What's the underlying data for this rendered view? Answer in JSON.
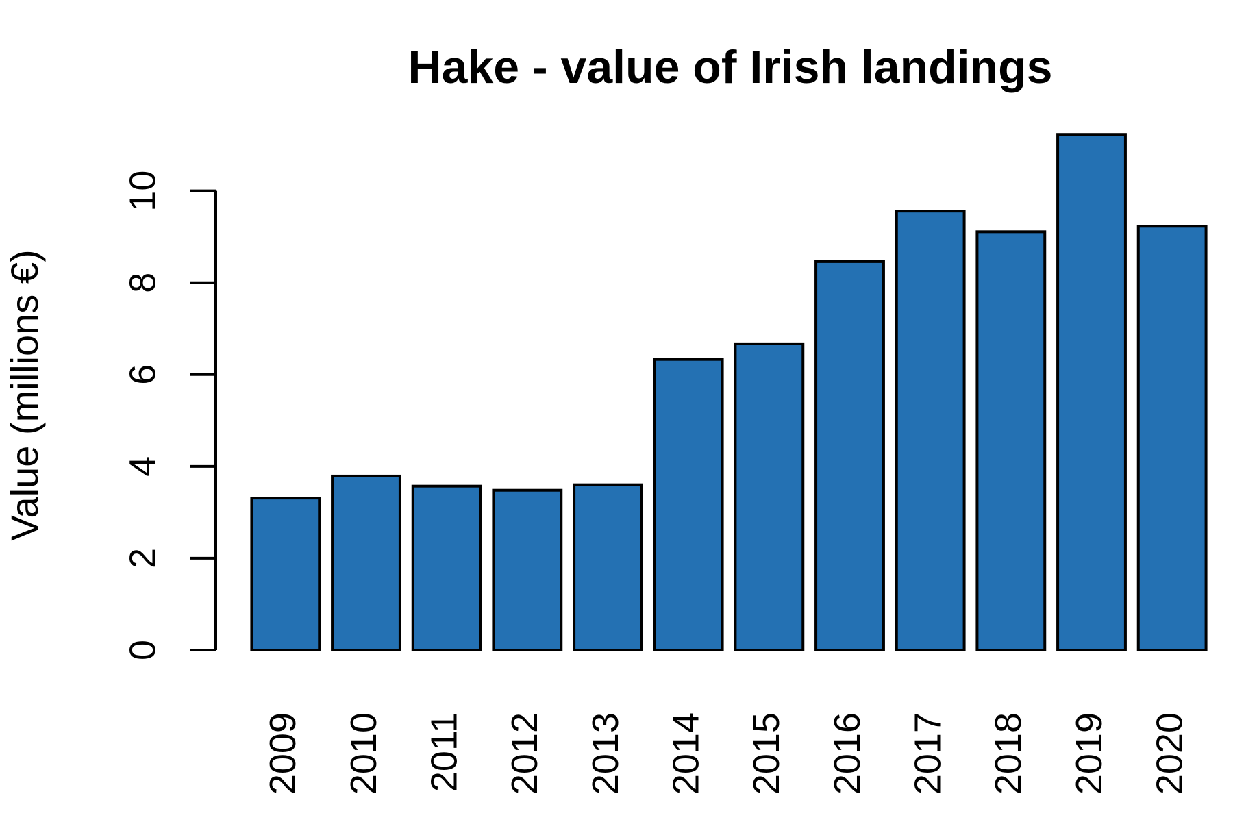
{
  "chart_data": {
    "type": "bar",
    "title": "Hake - value of Irish landings",
    "y_label": "Value (millions €)",
    "categories": [
      "2009",
      "2010",
      "2011",
      "2012",
      "2013",
      "2014",
      "2015",
      "2016",
      "2017",
      "2018",
      "2019",
      "2020"
    ],
    "values": [
      3.31,
      3.79,
      3.57,
      3.48,
      3.6,
      6.33,
      6.67,
      8.46,
      9.56,
      9.11,
      11.23,
      9.23
    ],
    "color": "#2471b3",
    "ylim": [
      0,
      11.8
    ],
    "yticks": [
      0,
      2,
      4,
      6,
      8,
      10
    ]
  }
}
